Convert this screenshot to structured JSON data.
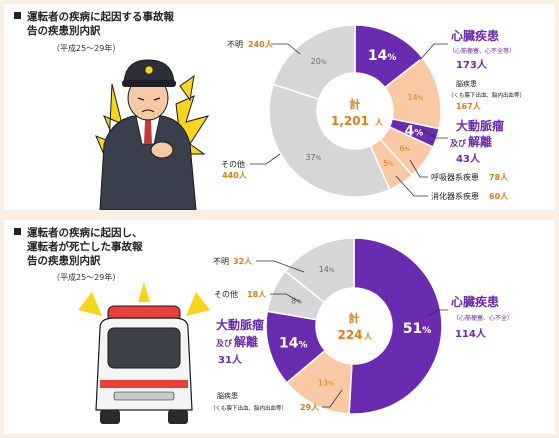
{
  "colors": {
    "purple": "#6a2bb0",
    "peach": "#f9c9a6",
    "gray": "#d6d6d6",
    "orange": "#e07d1a",
    "text": "#222222",
    "page_bg": "#fbeee3"
  },
  "panel1": {
    "heading_line1": "運転者の疾病に起因する事故報",
    "heading_line2": "告の疾患別内訳",
    "period": "（平成25～29年）",
    "illustration": "driver-clutching-chest",
    "labels": {
      "heart_title": "心臓疾患",
      "heart_sub": "（心筋梗塞、心不全等）",
      "heart_count": "173人",
      "brain_title": "脳疾患",
      "brain_sub": "（くも膜下出血、脳内出血等）",
      "brain_count": "167人",
      "aorta_title1": "大動脈瘤",
      "aorta_title2_prefix": "及び",
      "aorta_title2": "解離",
      "aorta_count": "43人",
      "resp_name": "呼吸器系疾患",
      "resp_count": "78人",
      "digest_name": "消化器系疾患",
      "digest_count": "60人",
      "other_name": "その他",
      "other_count": "440人",
      "unknown_name": "不明",
      "unknown_count": "240人"
    },
    "center": {
      "label": "計",
      "value": "1,201",
      "unit": "人"
    }
  },
  "panel2": {
    "heading_line1": "運転者の疾病に起因し、",
    "heading_line2": "運転者が死亡した事故報",
    "heading_line3": "告の疾患別内訳",
    "period": "（平成25～29年）",
    "illustration": "ambulance",
    "labels": {
      "heart_title": "心臓疾患",
      "heart_sub": "（心筋梗塞、心不全）",
      "heart_count": "114人",
      "aorta_title1": "大動脈瘤",
      "aorta_title2_prefix": "及び",
      "aorta_title2": "解離",
      "aorta_count": "31人",
      "brain_title": "脳疾患",
      "brain_sub": "（くも膜下出血、脳内出血等）",
      "brain_count": "29人",
      "other_name": "その他",
      "other_count": "18人",
      "unknown_name": "不明",
      "unknown_count": "32人"
    },
    "center": {
      "label": "計",
      "value": "224",
      "unit": "人"
    }
  },
  "chart_data": [
    {
      "type": "pie",
      "title": "運転者の疾病に起因する事故報告の疾患別内訳",
      "total": 1201,
      "slices": [
        {
          "name": "心臓疾患",
          "count": 173,
          "percent": 14,
          "pct_label": "14",
          "color": "purple"
        },
        {
          "name": "脳疾患",
          "count": 167,
          "percent": 14,
          "pct_label": "14",
          "color": "peach"
        },
        {
          "name": "大動脈瘤及び解離",
          "count": 43,
          "percent": 4,
          "pct_label": "4",
          "color": "purple"
        },
        {
          "name": "呼吸器系疾患",
          "count": 78,
          "percent": 6,
          "pct_label": "6",
          "color": "peach"
        },
        {
          "name": "消化器系疾患",
          "count": 60,
          "percent": 5,
          "pct_label": "5",
          "color": "peach"
        },
        {
          "name": "その他",
          "count": 440,
          "percent": 37,
          "pct_label": "37",
          "color": "gray"
        },
        {
          "name": "不明",
          "count": 240,
          "percent": 20,
          "pct_label": "20",
          "color": "gray"
        }
      ]
    },
    {
      "type": "pie",
      "title": "運転者の疾病に起因し、運転者が死亡した事故報告の疾患別内訳",
      "total": 224,
      "slices": [
        {
          "name": "心臓疾患",
          "count": 114,
          "percent": 51,
          "pct_label": "51",
          "color": "purple"
        },
        {
          "name": "脳疾患",
          "count": 29,
          "percent": 13,
          "pct_label": "13",
          "color": "peach"
        },
        {
          "name": "大動脈瘤及び解離",
          "count": 31,
          "percent": 14,
          "pct_label": "14",
          "color": "purple"
        },
        {
          "name": "その他",
          "count": 18,
          "percent": 8,
          "pct_label": "8",
          "color": "gray"
        },
        {
          "name": "不明",
          "count": 32,
          "percent": 14,
          "pct_label": "14",
          "color": "gray"
        }
      ]
    }
  ]
}
